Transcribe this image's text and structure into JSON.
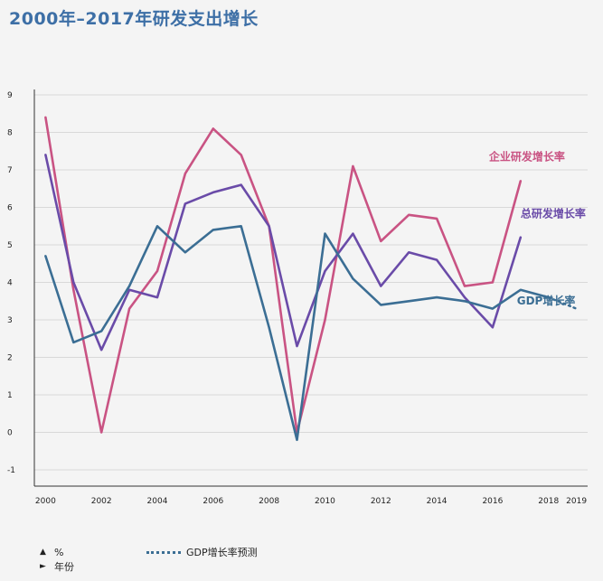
{
  "title": "2000年–2017年研发支出增长",
  "legend": {
    "y_unit_marker": "▲",
    "y_unit": "%",
    "x_unit_marker": "►",
    "x_unit": "年份",
    "forecast_label": "GDP增长率预测"
  },
  "colors": {
    "enterprise": "#c95383",
    "total": "#6a4ba8",
    "gdp": "#3b6e94",
    "grid": "#d8d8d8",
    "axis": "#333333"
  },
  "chart_data": {
    "type": "line",
    "title": "2000年–2017年研发支出增长",
    "xlabel": "年份",
    "ylabel": "%",
    "ylim": [
      -1,
      9
    ],
    "xlim": [
      1999.6,
      2019.4
    ],
    "yticks": [
      "9",
      "8",
      "7",
      "6",
      "5",
      "4",
      "3",
      "2",
      "1",
      "0",
      "-1"
    ],
    "xticks": [
      "2000",
      "2002",
      "2004",
      "2006",
      "2008",
      "2010",
      "2012",
      "2014",
      "2016",
      "2018",
      "2019"
    ],
    "grid": true,
    "series": [
      {
        "name": "企业研发增长率",
        "color": "#c95383",
        "x": [
          2000,
          2001,
          2002,
          2003,
          2004,
          2005,
          2006,
          2007,
          2008,
          2009,
          2010,
          2011,
          2012,
          2013,
          2014,
          2015,
          2016,
          2017
        ],
        "values": [
          8.4,
          3.8,
          0.0,
          3.3,
          4.3,
          6.9,
          8.1,
          7.4,
          5.5,
          0.0,
          3.0,
          7.1,
          5.1,
          5.8,
          5.7,
          3.9,
          4.0,
          6.7
        ]
      },
      {
        "name": "总研发增长率",
        "color": "#6a4ba8",
        "x": [
          2000,
          2001,
          2002,
          2003,
          2004,
          2005,
          2006,
          2007,
          2008,
          2009,
          2010,
          2011,
          2012,
          2013,
          2014,
          2015,
          2016,
          2017
        ],
        "values": [
          7.4,
          4.0,
          2.2,
          3.8,
          3.6,
          6.1,
          6.4,
          6.6,
          5.5,
          2.3,
          4.3,
          5.3,
          3.9,
          4.8,
          4.6,
          3.6,
          2.8,
          5.2
        ]
      },
      {
        "name": "GDP增长率",
        "color": "#3b6e94",
        "x": [
          2000,
          2001,
          2002,
          2003,
          2004,
          2005,
          2006,
          2007,
          2008,
          2009,
          2010,
          2011,
          2012,
          2013,
          2014,
          2015,
          2016,
          2017,
          2018
        ],
        "values": [
          4.7,
          2.4,
          2.7,
          3.9,
          5.5,
          4.8,
          5.4,
          5.5,
          2.8,
          -0.2,
          5.3,
          4.1,
          3.4,
          3.5,
          3.6,
          3.5,
          3.3,
          3.8,
          3.6
        ]
      },
      {
        "name": "GDP增长率预测",
        "color": "#3b6e94",
        "dashed": true,
        "x": [
          2018,
          2019
        ],
        "values": [
          3.6,
          3.3
        ]
      }
    ]
  }
}
